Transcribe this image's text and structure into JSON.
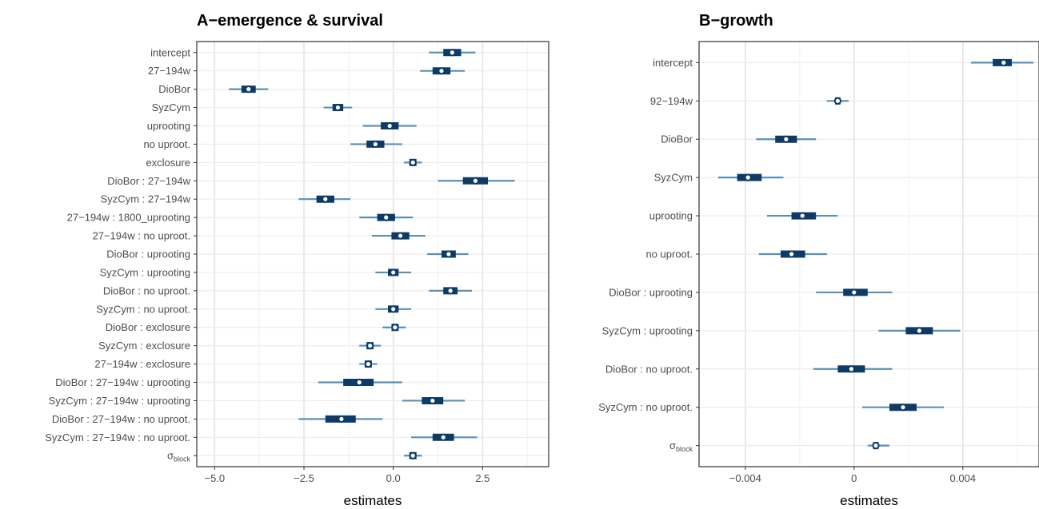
{
  "chart_data": [
    {
      "type": "interval",
      "title": "A−emergence & survival",
      "xlabel": "estimates",
      "xlim": [
        -5.5,
        4.35
      ],
      "xticks": [
        -5.0,
        -2.5,
        0.0,
        2.5
      ],
      "xtick_labels": [
        "−5.0",
        "−2.5",
        "0.0",
        "2.5"
      ],
      "grid": true,
      "colors": {
        "inner": "#0d3b66",
        "outer": "#5a90b8",
        "point_fill": "#ffffff"
      },
      "terms": [
        {
          "label": "intercept",
          "est": 1.65,
          "inner": [
            1.4,
            1.9
          ],
          "outer": [
            1.0,
            2.3
          ]
        },
        {
          "label": "27−194w",
          "est": 1.35,
          "inner": [
            1.1,
            1.6
          ],
          "outer": [
            0.75,
            2.0
          ]
        },
        {
          "label": "DioBor",
          "est": -4.05,
          "inner": [
            -4.25,
            -3.85
          ],
          "outer": [
            -4.6,
            -3.5
          ]
        },
        {
          "label": "SyzCym",
          "est": -1.55,
          "inner": [
            -1.7,
            -1.4
          ],
          "outer": [
            -1.95,
            -1.15
          ]
        },
        {
          "label": "uprooting",
          "est": -0.1,
          "inner": [
            -0.35,
            0.15
          ],
          "outer": [
            -0.85,
            0.65
          ]
        },
        {
          "label": "no uproot.",
          "est": -0.5,
          "inner": [
            -0.75,
            -0.25
          ],
          "outer": [
            -1.2,
            0.25
          ]
        },
        {
          "label": "exclosure",
          "est": 0.55,
          "inner": [
            0.45,
            0.65
          ],
          "outer": [
            0.3,
            0.8
          ]
        },
        {
          "label": "DioBor : 27−194w",
          "est": 2.3,
          "inner": [
            1.95,
            2.65
          ],
          "outer": [
            1.25,
            3.4
          ]
        },
        {
          "label": "SyzCym : 27−194w",
          "est": -1.9,
          "inner": [
            -2.15,
            -1.65
          ],
          "outer": [
            -2.65,
            -1.2
          ]
        },
        {
          "label": "27−194w : 1800_uprooting",
          "est": -0.2,
          "inner": [
            -0.45,
            0.05
          ],
          "outer": [
            -0.95,
            0.55
          ]
        },
        {
          "label": "27−194w : no uproot.",
          "est": 0.2,
          "inner": [
            -0.05,
            0.45
          ],
          "outer": [
            -0.6,
            0.9
          ]
        },
        {
          "label": "DioBor : uprooting",
          "est": 1.55,
          "inner": [
            1.35,
            1.75
          ],
          "outer": [
            0.95,
            2.1
          ]
        },
        {
          "label": "SyzCym : uprooting",
          "est": 0.0,
          "inner": [
            -0.15,
            0.15
          ],
          "outer": [
            -0.5,
            0.5
          ]
        },
        {
          "label": "DioBor : no uproot.",
          "est": 1.6,
          "inner": [
            1.4,
            1.8
          ],
          "outer": [
            1.0,
            2.2
          ]
        },
        {
          "label": "SyzCym : no uproot.",
          "est": 0.0,
          "inner": [
            -0.15,
            0.15
          ],
          "outer": [
            -0.5,
            0.5
          ]
        },
        {
          "label": "DioBor : exclosure",
          "est": 0.05,
          "inner": [
            -0.05,
            0.15
          ],
          "outer": [
            -0.3,
            0.35
          ]
        },
        {
          "label": "SyzCym : exclosure",
          "est": -0.65,
          "inner": [
            -0.75,
            -0.55
          ],
          "outer": [
            -0.95,
            -0.35
          ]
        },
        {
          "label": "27−194w : exclosure",
          "est": -0.7,
          "inner": [
            -0.8,
            -0.6
          ],
          "outer": [
            -0.95,
            -0.45
          ]
        },
        {
          "label": "DioBor : 27−194w : uprooting",
          "est": -0.95,
          "inner": [
            -1.4,
            -0.55
          ],
          "outer": [
            -2.1,
            0.25
          ]
        },
        {
          "label": "SyzCym : 27−194w : uprooting",
          "est": 1.1,
          "inner": [
            0.8,
            1.4
          ],
          "outer": [
            0.25,
            2.0
          ]
        },
        {
          "label": "DioBor : 27−194w : no uproot.",
          "est": -1.45,
          "inner": [
            -1.9,
            -1.05
          ],
          "outer": [
            -2.65,
            -0.3
          ]
        },
        {
          "label": "SyzCym : 27−194w : no uproot.",
          "est": 1.4,
          "inner": [
            1.1,
            1.7
          ],
          "outer": [
            0.5,
            2.35
          ]
        },
        {
          "label": "σ",
          "sub": "block",
          "est": 0.55,
          "inner": [
            0.45,
            0.65
          ],
          "outer": [
            0.3,
            0.8
          ]
        }
      ]
    },
    {
      "type": "interval",
      "title": "B−growth",
      "xlabel": "estimates",
      "xlim": [
        -0.0057,
        0.0068
      ],
      "xticks": [
        -0.004,
        0.0,
        0.004
      ],
      "xtick_labels": [
        "−0.004",
        "0",
        "0.004"
      ],
      "grid": true,
      "colors": {
        "inner": "#0d3b66",
        "outer": "#5a90b8",
        "point_fill": "#ffffff"
      },
      "terms": [
        {
          "label": "intercept",
          "est": 0.0055,
          "inner": [
            0.0051,
            0.0058
          ],
          "outer": [
            0.0043,
            0.0066
          ]
        },
        {
          "label": "92−194w",
          "est": -0.0006,
          "inner": [
            -0.0007,
            -0.0005
          ],
          "outer": [
            -0.001,
            -0.0002
          ]
        },
        {
          "label": "DioBor",
          "est": -0.0025,
          "inner": [
            -0.0029,
            -0.0021
          ],
          "outer": [
            -0.0036,
            -0.0014
          ]
        },
        {
          "label": "SyzCym",
          "est": -0.0039,
          "inner": [
            -0.0043,
            -0.0034
          ],
          "outer": [
            -0.005,
            -0.0026
          ]
        },
        {
          "label": "uprooting",
          "est": -0.0019,
          "inner": [
            -0.0023,
            -0.0014
          ],
          "outer": [
            -0.0032,
            -0.0006
          ]
        },
        {
          "label": "no uproot.",
          "est": -0.0023,
          "inner": [
            -0.0027,
            -0.0018
          ],
          "outer": [
            -0.0035,
            -0.001
          ]
        },
        {
          "label": "DioBor : uprooting",
          "est": 0.0,
          "inner": [
            -0.0004,
            0.0005
          ],
          "outer": [
            -0.0014,
            0.0014
          ]
        },
        {
          "label": "SyzCym : uprooting",
          "est": 0.0024,
          "inner": [
            0.0019,
            0.0029
          ],
          "outer": [
            0.0009,
            0.0039
          ]
        },
        {
          "label": "DioBor : no uproot.",
          "est": -0.0001,
          "inner": [
            -0.0006,
            0.0004
          ],
          "outer": [
            -0.0015,
            0.0014
          ]
        },
        {
          "label": "SyzCym : no uproot.",
          "est": 0.0018,
          "inner": [
            0.0013,
            0.0023
          ],
          "outer": [
            0.0003,
            0.0033
          ]
        },
        {
          "label": "σ",
          "sub": "block",
          "est": 0.0008,
          "inner": [
            0.0007,
            0.0009
          ],
          "outer": [
            0.0005,
            0.0013
          ]
        }
      ]
    }
  ]
}
